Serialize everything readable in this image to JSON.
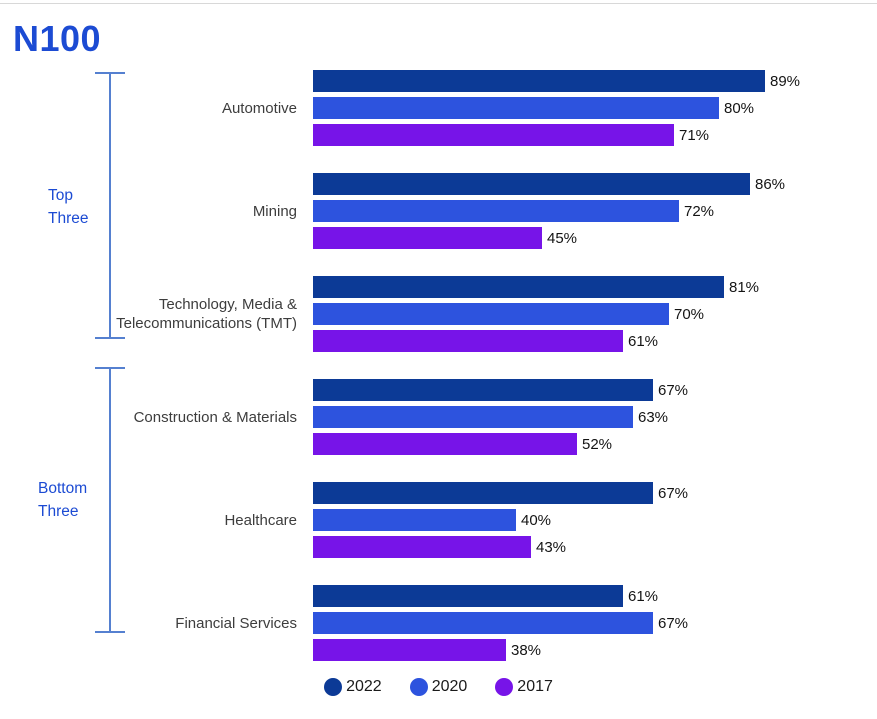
{
  "title": "N100",
  "colors": {
    "title": "#1c4bd3",
    "bracket_line": "#5580d0",
    "bracket_label": "#1c4bd3",
    "category_label": "#3d3d3d",
    "value_label": "#141414",
    "series_2022": "#0c3a96",
    "series_2020": "#2d53de",
    "series_2017": "#7714e8"
  },
  "brackets": {
    "top": {
      "line1": "Top",
      "line2": "Three"
    },
    "bottom": {
      "line1": "Bottom",
      "line2": "Three"
    }
  },
  "chart_data": {
    "type": "bar",
    "orientation": "horizontal",
    "title": "N100",
    "unit": "%",
    "xlim": [
      0,
      100
    ],
    "value_labels": true,
    "legend_position": "bottom",
    "categories": [
      "Automotive",
      "Mining",
      "Technology, Media &\nTelecommunications (TMT)",
      "Construction & Materials",
      "Healthcare",
      "Financial Services"
    ],
    "series": [
      {
        "name": "2022",
        "color": "#0c3a96",
        "values": [
          89,
          86,
          81,
          67,
          67,
          61
        ]
      },
      {
        "name": "2020",
        "color": "#2d53de",
        "values": [
          80,
          72,
          70,
          63,
          40,
          67
        ]
      },
      {
        "name": "2017",
        "color": "#7714e8",
        "values": [
          71,
          45,
          61,
          52,
          43,
          38
        ]
      }
    ],
    "groups": [
      {
        "name": "Top Three",
        "categories": [
          "Automotive",
          "Mining",
          "Technology, Media & Telecommunications (TMT)"
        ]
      },
      {
        "name": "Bottom Three",
        "categories": [
          "Construction & Materials",
          "Healthcare",
          "Financial Services"
        ]
      }
    ]
  },
  "legend": [
    {
      "label": "2022",
      "color": "#0c3a96"
    },
    {
      "label": "2020",
      "color": "#2d53de"
    },
    {
      "label": "2017",
      "color": "#7714e8"
    }
  ]
}
